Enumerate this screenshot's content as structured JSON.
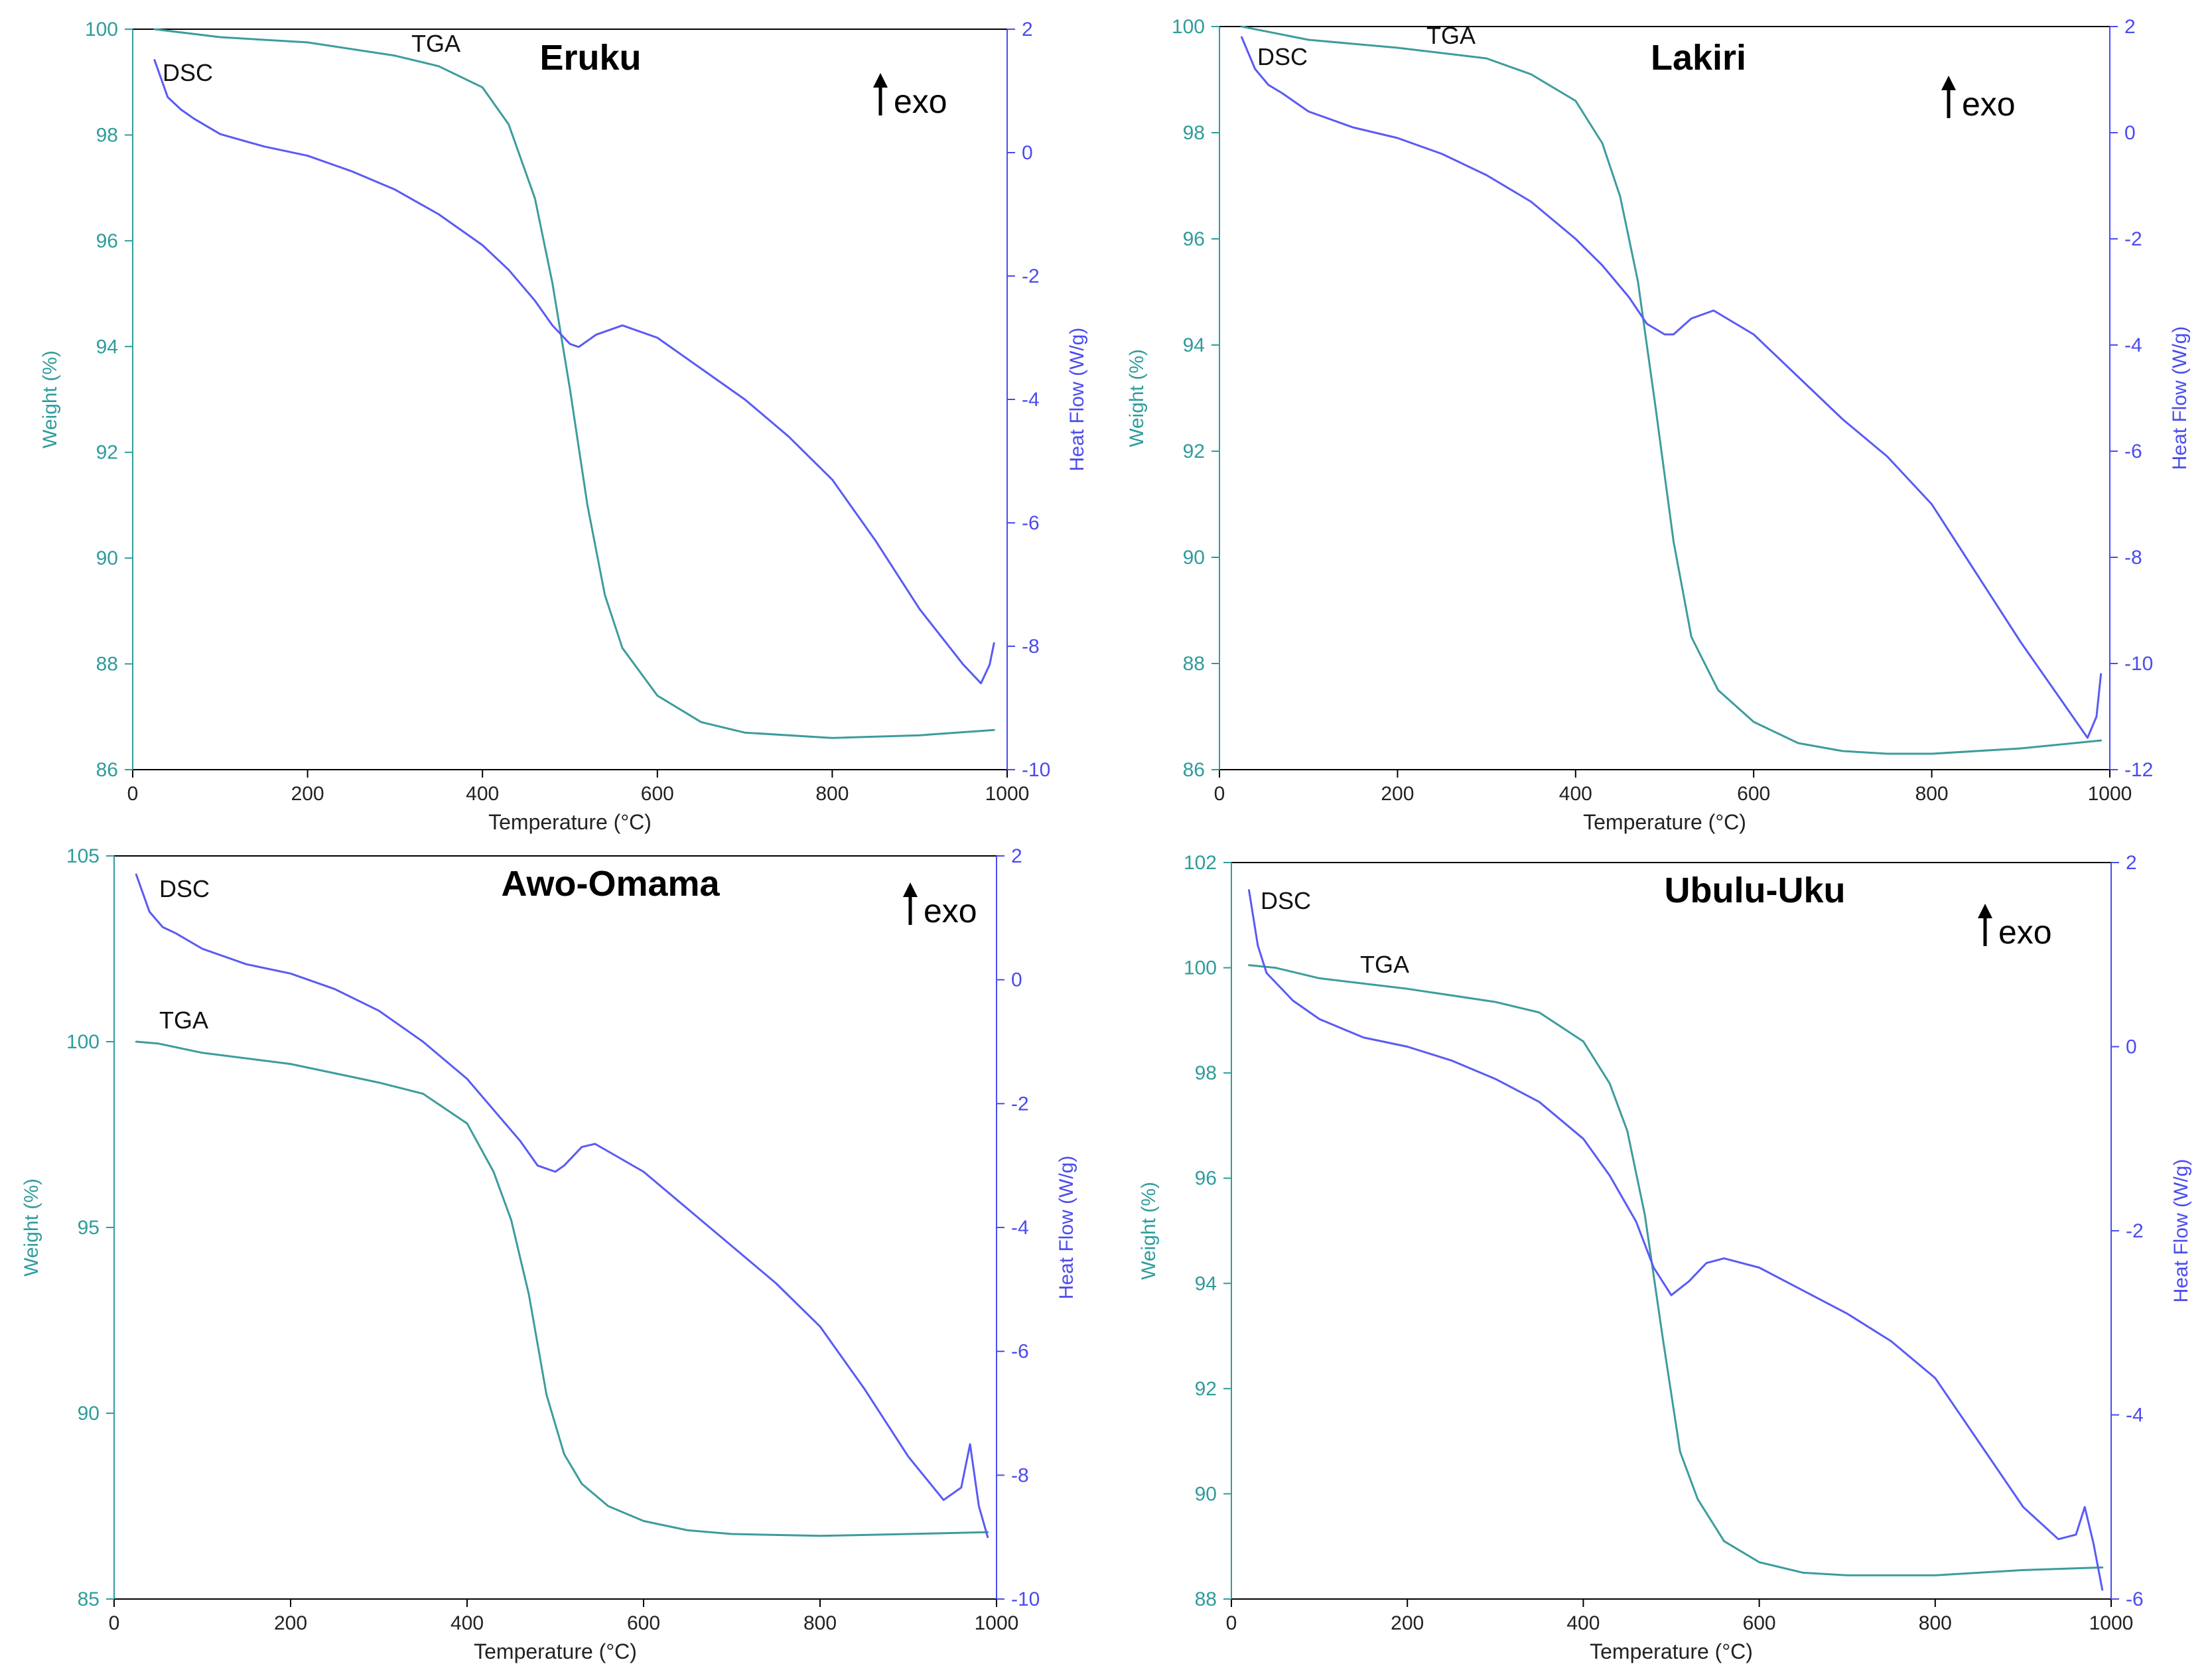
{
  "colors": {
    "tga": "#3d9c9c",
    "dsc": "#5a5af5",
    "left_axis": "#2f9c9c",
    "right_axis": "#4b4bf0",
    "frame": "#000000"
  },
  "chart_data": [
    {
      "type": "line",
      "title": "Eruku",
      "xlabel": "Temperature (°C)",
      "ylabel": "Weight (%)",
      "y2label": "Heat Flow (W/g)",
      "xlim": [
        0,
        1000
      ],
      "ylim": [
        86,
        100
      ],
      "y2lim": [
        -10,
        2
      ],
      "xticks": [
        0,
        200,
        400,
        600,
        800,
        1000
      ],
      "yticks": [
        86,
        88,
        90,
        92,
        94,
        96,
        98,
        100
      ],
      "y2ticks": [
        -10,
        -8,
        -6,
        -4,
        -2,
        0,
        2
      ],
      "exo_label": "exo",
      "series": [
        {
          "name": "TGA",
          "axis": "left",
          "x": [
            25,
            100,
            200,
            300,
            350,
            400,
            430,
            460,
            480,
            500,
            520,
            540,
            560,
            600,
            650,
            700,
            800,
            900,
            985
          ],
          "values": [
            100,
            99.85,
            99.75,
            99.5,
            99.3,
            98.9,
            98.2,
            96.8,
            95.2,
            93.2,
            91.0,
            89.3,
            88.3,
            87.4,
            86.9,
            86.7,
            86.6,
            86.65,
            86.75
          ]
        },
        {
          "name": "DSC",
          "axis": "right",
          "x": [
            25,
            40,
            55,
            70,
            100,
            150,
            200,
            250,
            300,
            350,
            400,
            430,
            460,
            480,
            500,
            510,
            530,
            560,
            600,
            650,
            700,
            750,
            800,
            850,
            900,
            950,
            970,
            980,
            985
          ],
          "values": [
            1.5,
            0.9,
            0.7,
            0.55,
            0.3,
            0.1,
            -0.05,
            -0.3,
            -0.6,
            -1.0,
            -1.5,
            -1.9,
            -2.4,
            -2.8,
            -3.1,
            -3.15,
            -2.95,
            -2.8,
            -3.0,
            -3.5,
            -4.0,
            -4.6,
            -5.3,
            -6.3,
            -7.4,
            -8.3,
            -8.6,
            -8.3,
            -7.95
          ]
        }
      ],
      "annotations": [
        "DSC",
        "TGA"
      ]
    },
    {
      "type": "line",
      "title": "Lakiri",
      "xlabel": "Temperature (°C)",
      "ylabel": "Weight (%)",
      "y2label": "Heat Flow (W/g)",
      "xlim": [
        0,
        1000
      ],
      "ylim": [
        86,
        100
      ],
      "y2lim": [
        -12,
        2
      ],
      "xticks": [
        0,
        200,
        400,
        600,
        800,
        1000
      ],
      "yticks": [
        86,
        88,
        90,
        92,
        94,
        96,
        98,
        100
      ],
      "y2ticks": [
        -12,
        -10,
        -8,
        -6,
        -4,
        -2,
        0,
        2
      ],
      "exo_label": "exo",
      "series": [
        {
          "name": "TGA",
          "axis": "left",
          "x": [
            25,
            100,
            200,
            300,
            350,
            400,
            430,
            450,
            470,
            490,
            510,
            530,
            560,
            600,
            650,
            700,
            750,
            800,
            900,
            990
          ],
          "values": [
            100,
            99.75,
            99.6,
            99.4,
            99.1,
            98.6,
            97.8,
            96.8,
            95.2,
            92.8,
            90.3,
            88.5,
            87.5,
            86.9,
            86.5,
            86.35,
            86.3,
            86.3,
            86.4,
            86.55
          ]
        },
        {
          "name": "DSC",
          "axis": "right",
          "x": [
            25,
            40,
            55,
            70,
            100,
            150,
            200,
            250,
            300,
            350,
            400,
            430,
            460,
            480,
            500,
            510,
            530,
            555,
            600,
            650,
            700,
            750,
            800,
            850,
            900,
            950,
            975,
            985,
            990
          ],
          "values": [
            1.8,
            1.2,
            0.9,
            0.75,
            0.4,
            0.1,
            -0.1,
            -0.4,
            -0.8,
            -1.3,
            -2.0,
            -2.5,
            -3.1,
            -3.6,
            -3.8,
            -3.8,
            -3.5,
            -3.35,
            -3.8,
            -4.6,
            -5.4,
            -6.1,
            -7.0,
            -8.3,
            -9.6,
            -10.8,
            -11.4,
            -11.0,
            -10.2
          ]
        }
      ],
      "annotations": [
        "DSC",
        "TGA"
      ]
    },
    {
      "type": "line",
      "title": "Awo-Omama",
      "xlabel": "Temperature (°C)",
      "ylabel": "Weight (%)",
      "y2label": "Heat Flow (W/g)",
      "xlim": [
        0,
        1000
      ],
      "ylim": [
        85,
        105
      ],
      "y2lim": [
        -10,
        2
      ],
      "xticks": [
        0,
        200,
        400,
        600,
        800,
        1000
      ],
      "yticks": [
        85,
        90,
        95,
        100,
        105
      ],
      "y2ticks": [
        -10,
        -8,
        -6,
        -4,
        -2,
        0,
        2
      ],
      "exo_label": "exo",
      "series": [
        {
          "name": "TGA",
          "axis": "left",
          "x": [
            25,
            50,
            100,
            200,
            300,
            350,
            400,
            430,
            450,
            470,
            490,
            510,
            530,
            560,
            600,
            650,
            700,
            800,
            900,
            990
          ],
          "values": [
            100,
            99.95,
            99.7,
            99.4,
            98.9,
            98.6,
            97.8,
            96.5,
            95.2,
            93.2,
            90.5,
            88.9,
            88.1,
            87.5,
            87.1,
            86.85,
            86.75,
            86.7,
            86.75,
            86.8
          ]
        },
        {
          "name": "DSC",
          "axis": "right",
          "x": [
            25,
            40,
            55,
            70,
            100,
            150,
            200,
            250,
            300,
            350,
            400,
            430,
            460,
            480,
            500,
            510,
            530,
            545,
            600,
            650,
            700,
            750,
            800,
            850,
            900,
            940,
            960,
            970,
            980,
            990
          ],
          "values": [
            1.7,
            1.1,
            0.85,
            0.75,
            0.5,
            0.25,
            0.1,
            -0.15,
            -0.5,
            -1.0,
            -1.6,
            -2.1,
            -2.6,
            -3.0,
            -3.1,
            -3.0,
            -2.7,
            -2.65,
            -3.1,
            -3.7,
            -4.3,
            -4.9,
            -5.6,
            -6.6,
            -7.7,
            -8.4,
            -8.2,
            -7.5,
            -8.5,
            -9.0
          ]
        }
      ],
      "annotations": [
        "DSC",
        "TGA"
      ]
    },
    {
      "type": "line",
      "title": "Ubulu-Uku",
      "xlabel": "Temperature (°C)",
      "ylabel": "Weight (%)",
      "y2label": "Heat Flow (W/g)",
      "xlim": [
        0,
        1000
      ],
      "ylim": [
        88,
        102
      ],
      "y2lim": [
        -6,
        2
      ],
      "xticks": [
        0,
        200,
        400,
        600,
        800,
        1000
      ],
      "yticks": [
        88,
        90,
        92,
        94,
        96,
        98,
        100,
        102
      ],
      "y2ticks": [
        -6,
        -4,
        -2,
        0,
        2
      ],
      "exo_label": "exo",
      "series": [
        {
          "name": "TGA",
          "axis": "left",
          "x": [
            20,
            50,
            100,
            200,
            300,
            350,
            400,
            430,
            450,
            470,
            490,
            510,
            530,
            560,
            600,
            650,
            700,
            800,
            900,
            990
          ],
          "values": [
            100.05,
            100.0,
            99.8,
            99.6,
            99.35,
            99.15,
            98.6,
            97.8,
            96.9,
            95.3,
            93.0,
            90.8,
            89.9,
            89.1,
            88.7,
            88.5,
            88.45,
            88.45,
            88.55,
            88.6
          ]
        },
        {
          "name": "DSC",
          "axis": "right",
          "x": [
            20,
            30,
            40,
            50,
            70,
            100,
            150,
            200,
            250,
            300,
            350,
            400,
            430,
            460,
            480,
            500,
            520,
            540,
            560,
            600,
            650,
            700,
            750,
            800,
            850,
            900,
            940,
            960,
            970,
            980,
            990
          ],
          "values": [
            1.7,
            1.1,
            0.8,
            0.7,
            0.5,
            0.3,
            0.1,
            0.0,
            -0.15,
            -0.35,
            -0.6,
            -1.0,
            -1.4,
            -1.9,
            -2.4,
            -2.7,
            -2.55,
            -2.35,
            -2.3,
            -2.4,
            -2.65,
            -2.9,
            -3.2,
            -3.6,
            -4.3,
            -5.0,
            -5.35,
            -5.3,
            -5.0,
            -5.4,
            -5.9
          ]
        }
      ],
      "annotations": [
        "DSC",
        "TGA"
      ]
    }
  ]
}
